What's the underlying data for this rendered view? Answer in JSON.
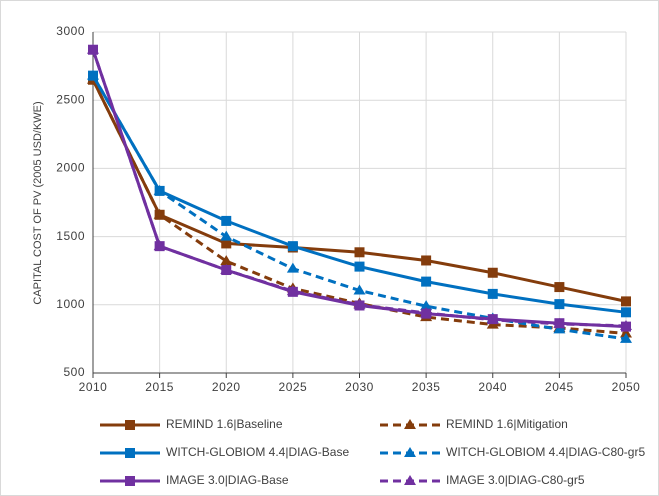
{
  "chart_data": {
    "type": "line",
    "y_label": "CAPITAL COST OF PV (2005 USD/KWE)",
    "x": [
      2010,
      2015,
      2020,
      2025,
      2030,
      2035,
      2040,
      2045,
      2050
    ],
    "xlim": [
      2010,
      2050
    ],
    "xticks": [
      2010,
      2015,
      2020,
      2025,
      2030,
      2035,
      2040,
      2045,
      2050
    ],
    "ylim": [
      500,
      3000
    ],
    "yticks": [
      500,
      1000,
      1500,
      2000,
      2500,
      3000
    ],
    "grid": true,
    "series": [
      {
        "name": "REMIND 1.6|Baseline",
        "color": "#843c0c",
        "dashed": false,
        "marker": "square",
        "values": [
          2650,
          1660,
          1450,
          1420,
          1385,
          1325,
          1235,
          1130,
          1025
        ]
      },
      {
        "name": "REMIND 1.6|Mitigation",
        "color": "#843c0c",
        "dashed": true,
        "marker": "triangle",
        "values": [
          2650,
          1660,
          1320,
          1120,
          1010,
          910,
          855,
          830,
          790
        ]
      },
      {
        "name": "WITCH-GLOBIOM 4.4|DIAG-Base",
        "color": "#0070c0",
        "dashed": false,
        "marker": "square",
        "values": [
          2680,
          1835,
          1615,
          1430,
          1280,
          1170,
          1080,
          1005,
          945
        ]
      },
      {
        "name": "WITCH-GLOBIOM 4.4|DIAG-C80-gr5",
        "color": "#0070c0",
        "dashed": true,
        "marker": "triangle",
        "values": [
          2680,
          1835,
          1500,
          1265,
          1105,
          990,
          900,
          820,
          750
        ]
      },
      {
        "name": "IMAGE 3.0|DIAG-Base",
        "color": "#7030a0",
        "dashed": false,
        "marker": "square",
        "values": [
          2870,
          1430,
          1255,
          1095,
          995,
          935,
          895,
          865,
          840
        ]
      },
      {
        "name": "IMAGE 3.0|DIAG-C80-gr5",
        "color": "#7030a0",
        "dashed": true,
        "marker": "triangle",
        "values": [
          2870,
          1430,
          1255,
          1100,
          1000,
          940,
          890,
          860,
          845
        ]
      }
    ]
  }
}
